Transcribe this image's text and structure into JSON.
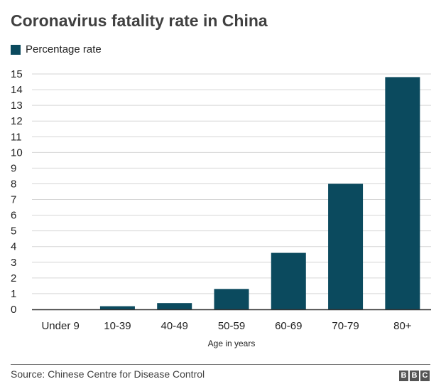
{
  "chart_data": {
    "type": "bar",
    "title": "Coronavirus fatality rate in China",
    "categories": [
      "Under 9",
      "10-39",
      "40-49",
      "50-59",
      "60-69",
      "70-79",
      "80+"
    ],
    "series": [
      {
        "name": "Percentage rate",
        "values": [
          0,
          0.2,
          0.4,
          1.3,
          3.6,
          8.0,
          14.8
        ],
        "color": "#0b4a5e"
      }
    ],
    "xlabel": "Age in years",
    "ylabel": "",
    "ylim": [
      0,
      15
    ],
    "yticks": [
      0,
      1,
      2,
      3,
      4,
      5,
      6,
      7,
      8,
      9,
      10,
      11,
      12,
      13,
      14,
      15
    ],
    "grid": true,
    "legend": "top-left"
  },
  "footer": {
    "source": "Source: Chinese Centre for Disease Control",
    "logo_letters": [
      "B",
      "B",
      "C"
    ]
  }
}
